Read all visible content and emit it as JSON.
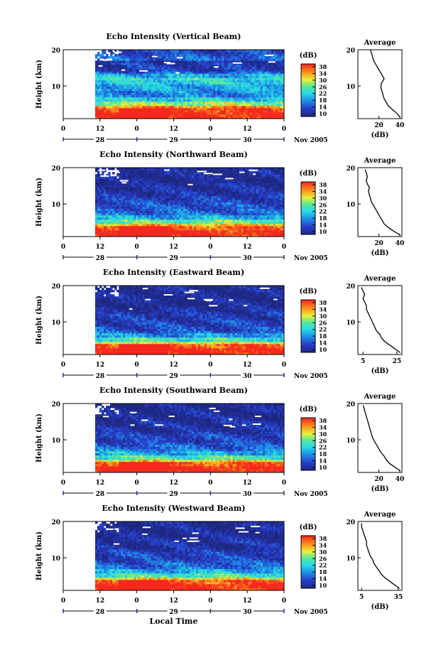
{
  "chart_data": [
    {
      "type": "heatmap",
      "title": "Echo Intensity (Vertical Beam)",
      "ylabel": "Height (km)",
      "ylim": [
        1,
        20
      ],
      "yticks": [
        "20",
        "10"
      ],
      "hour_ticks": [
        "0",
        "12",
        "0",
        "12",
        "0",
        "12",
        "0"
      ],
      "date_ticks": [
        "28",
        "29",
        "30"
      ],
      "month_label": "Nov 2005",
      "colorbar": {
        "unit": "(dB)",
        "ticks": [
          "38",
          "34",
          "30",
          "26",
          "22",
          "18",
          "14",
          "10"
        ]
      },
      "profile": {
        "title": "Average",
        "xlabel": "(dB)",
        "xticks": [
          "20",
          "40"
        ],
        "xlim": [
          0,
          42
        ],
        "points": [
          [
            40,
            1.5
          ],
          [
            37,
            2.5
          ],
          [
            33,
            3.5
          ],
          [
            29,
            4.5
          ],
          [
            27,
            5.5
          ],
          [
            25,
            6.5
          ],
          [
            24,
            7.5
          ],
          [
            23,
            8.5
          ],
          [
            22,
            9.5
          ],
          [
            22,
            10.5
          ],
          [
            24,
            11.5
          ],
          [
            25,
            12
          ],
          [
            23,
            13
          ],
          [
            21,
            14
          ],
          [
            19,
            15
          ],
          [
            17,
            16
          ],
          [
            15,
            17
          ],
          [
            14,
            18
          ],
          [
            13,
            19
          ],
          [
            12,
            20
          ]
        ]
      },
      "heat_profile": [
        38,
        38,
        37,
        34,
        28,
        22,
        18,
        18,
        20,
        20,
        22,
        24,
        20,
        16,
        13,
        13,
        12,
        16,
        15,
        14
      ]
    },
    {
      "type": "heatmap",
      "title": "Echo Intensity (Northward Beam)",
      "ylabel": "Height (km)",
      "ylim": [
        1,
        20
      ],
      "yticks": [
        "20",
        "10"
      ],
      "hour_ticks": [
        "0",
        "12",
        "0",
        "12",
        "0",
        "12",
        "0"
      ],
      "date_ticks": [
        "28",
        "29",
        "30"
      ],
      "month_label": "Nov 2005",
      "colorbar": {
        "unit": "(dB)",
        "ticks": [
          "38",
          "34",
          "30",
          "26",
          "22",
          "18",
          "14",
          "10"
        ]
      },
      "profile": {
        "title": "Average",
        "xlabel": "(dB)",
        "xticks": [
          "20",
          "40"
        ],
        "xlim": [
          0,
          42
        ],
        "points": [
          [
            40,
            1.5
          ],
          [
            34,
            2.5
          ],
          [
            29,
            3.5
          ],
          [
            25,
            4.5
          ],
          [
            23,
            5.5
          ],
          [
            21,
            6.5
          ],
          [
            19,
            7.5
          ],
          [
            17,
            8.5
          ],
          [
            15,
            9.5
          ],
          [
            13,
            10.5
          ],
          [
            12,
            11.5
          ],
          [
            11,
            12.5
          ],
          [
            10,
            13.5
          ],
          [
            11,
            14.5
          ],
          [
            9,
            15.5
          ],
          [
            8,
            16.5
          ],
          [
            9,
            17.5
          ],
          [
            8,
            18.5
          ],
          [
            7,
            19.5
          ]
        ]
      },
      "heat_profile": [
        38,
        38,
        36,
        32,
        26,
        20,
        17,
        16,
        15,
        15,
        14,
        13,
        12,
        12,
        12,
        11,
        11,
        11,
        11,
        11
      ]
    },
    {
      "type": "heatmap",
      "title": "Echo Intensity (Eastward Beam)",
      "ylabel": "Height (km)",
      "ylim": [
        1,
        20
      ],
      "yticks": [
        "20",
        "10"
      ],
      "hour_ticks": [
        "0",
        "12",
        "0",
        "12",
        "0",
        "12",
        "0"
      ],
      "date_ticks": [
        "28",
        "29",
        "30"
      ],
      "month_label": "Nov 2005",
      "colorbar": {
        "unit": "(dB)",
        "ticks": [
          "38",
          "34",
          "30",
          "26",
          "22",
          "18",
          "14",
          "10"
        ]
      },
      "profile": {
        "title": "Average",
        "xlabel": "(dB)",
        "xticks": [
          "5",
          "25"
        ],
        "xlim": [
          2,
          28
        ],
        "points": [
          [
            27,
            1.5
          ],
          [
            24,
            2.5
          ],
          [
            21,
            3.5
          ],
          [
            18,
            4.5
          ],
          [
            16,
            5.5
          ],
          [
            15,
            6.5
          ],
          [
            13,
            7.5
          ],
          [
            12,
            8.5
          ],
          [
            11,
            9.5
          ],
          [
            10,
            10.5
          ],
          [
            9,
            11.5
          ],
          [
            8,
            12.5
          ],
          [
            7,
            13.5
          ],
          [
            7,
            14.5
          ],
          [
            6,
            15.5
          ],
          [
            5,
            16.5
          ],
          [
            6,
            17.5
          ],
          [
            5,
            18.5
          ],
          [
            4,
            19.5
          ]
        ]
      },
      "heat_profile": [
        38,
        38,
        36,
        30,
        24,
        19,
        16,
        15,
        14,
        14,
        13,
        13,
        12,
        12,
        11,
        11,
        11,
        11,
        11,
        11
      ]
    },
    {
      "type": "heatmap",
      "title": "Echo Intensity (Southward Beam)",
      "ylabel": "Height (km)",
      "ylim": [
        1,
        20
      ],
      "yticks": [
        "20",
        "10"
      ],
      "hour_ticks": [
        "0",
        "12",
        "0",
        "12",
        "0",
        "12",
        "0"
      ],
      "date_ticks": [
        "28",
        "29",
        "30"
      ],
      "month_label": "Nov 2005",
      "colorbar": {
        "unit": "(dB)",
        "ticks": [
          "38",
          "34",
          "30",
          "26",
          "22",
          "18",
          "14",
          "10"
        ]
      },
      "profile": {
        "title": "Average",
        "xlabel": "(dB)",
        "xticks": [
          "20",
          "40"
        ],
        "xlim": [
          0,
          42
        ],
        "points": [
          [
            40,
            1.5
          ],
          [
            35,
            2.5
          ],
          [
            30,
            3.5
          ],
          [
            27,
            4.5
          ],
          [
            25,
            5.5
          ],
          [
            22,
            6.5
          ],
          [
            20,
            7.5
          ],
          [
            18,
            8.5
          ],
          [
            16,
            9.5
          ],
          [
            14,
            10.5
          ],
          [
            13,
            11.5
          ],
          [
            12,
            12.5
          ],
          [
            11,
            13.5
          ],
          [
            10,
            14.5
          ],
          [
            9,
            15.5
          ],
          [
            8,
            16.5
          ],
          [
            7,
            17.5
          ],
          [
            6,
            18.5
          ],
          [
            5,
            19.5
          ]
        ]
      },
      "heat_profile": [
        38,
        38,
        36,
        31,
        25,
        20,
        17,
        16,
        15,
        14,
        14,
        13,
        12,
        12,
        12,
        11,
        11,
        11,
        11,
        11
      ]
    },
    {
      "type": "heatmap",
      "title": "Echo Intensity (Westward Beam)",
      "ylabel": "Height (km)",
      "ylim": [
        1,
        20
      ],
      "yticks": [
        "20",
        "10"
      ],
      "hour_ticks": [
        "0",
        "12",
        "0",
        "12",
        "0",
        "12",
        "0"
      ],
      "date_ticks": [
        "28",
        "29",
        "30"
      ],
      "month_label": "Nov 2005",
      "xlabel": "Local Time",
      "colorbar": {
        "unit": "(dB)",
        "ticks": [
          "38",
          "34",
          "30",
          "26",
          "22",
          "18",
          "14",
          "10"
        ]
      },
      "profile": {
        "title": "Average",
        "xlabel": "(dB)",
        "xticks": [
          "5",
          "35"
        ],
        "xlim": [
          2,
          38
        ],
        "points": [
          [
            36,
            1.5
          ],
          [
            32,
            2.5
          ],
          [
            28,
            3.5
          ],
          [
            24,
            4.5
          ],
          [
            21,
            5.5
          ],
          [
            19,
            6.5
          ],
          [
            17,
            7.5
          ],
          [
            15,
            8.5
          ],
          [
            14,
            9.5
          ],
          [
            12,
            10.5
          ],
          [
            11,
            11.5
          ],
          [
            10,
            12.5
          ],
          [
            9,
            13.5
          ],
          [
            9,
            14.5
          ],
          [
            8,
            15.5
          ],
          [
            7,
            16.5
          ],
          [
            6,
            17.5
          ],
          [
            5,
            18.5
          ],
          [
            5,
            19.5
          ]
        ]
      },
      "heat_profile": [
        38,
        38,
        36,
        31,
        25,
        20,
        17,
        16,
        15,
        14,
        14,
        13,
        12,
        12,
        12,
        11,
        11,
        11,
        11,
        11
      ]
    }
  ]
}
